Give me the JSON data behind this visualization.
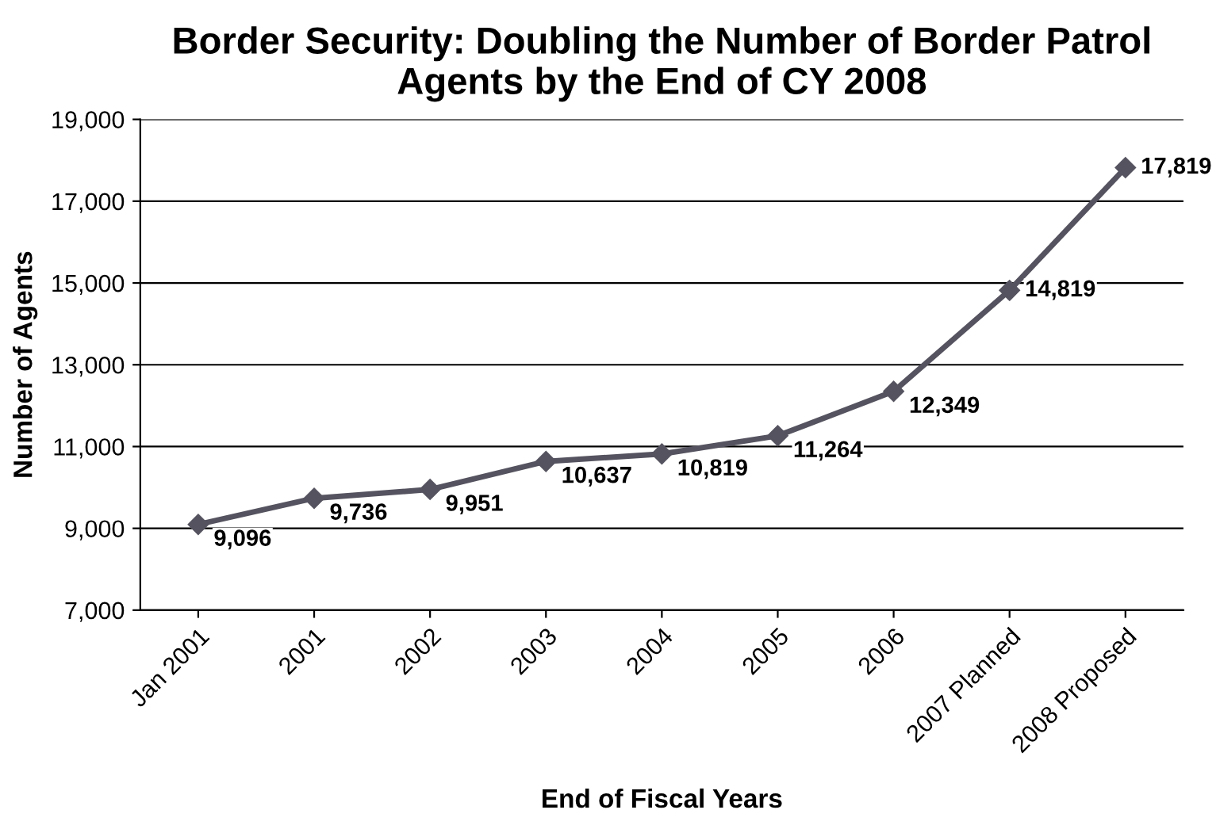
{
  "chart_data": {
    "type": "line",
    "title": "Border Security: Doubling the Number of Border Patrol Agents by the End of CY 2008",
    "xlabel": "End of Fiscal Years",
    "ylabel": "Number of Agents",
    "categories": [
      "Jan 2001",
      "2001",
      "2002",
      "2003",
      "2004",
      "2005",
      "2006",
      "2007 Planned",
      "2008 Proposed"
    ],
    "series": [
      {
        "color": "#55535f",
        "values": [
          9096,
          9736,
          9951,
          10637,
          10819,
          11264,
          12349,
          14819,
          17819
        ],
        "value_labels": [
          "9,096",
          "9,736",
          "9,951",
          "10,637",
          "10,819",
          "11,264",
          "12,349",
          "14,819",
          "17,819"
        ]
      }
    ],
    "ylim": [
      7000,
      19000
    ],
    "yticks": [
      {
        "value": 7000,
        "label": "7,000"
      },
      {
        "value": 9000,
        "label": "9,000"
      },
      {
        "value": 11000,
        "label": "11,000"
      },
      {
        "value": 13000,
        "label": "13,000"
      },
      {
        "value": 15000,
        "label": "15,000"
      },
      {
        "value": 17000,
        "label": "17,000"
      },
      {
        "value": 19000,
        "label": "19,000"
      }
    ],
    "grid": "y",
    "legend": false,
    "marker": "diamond",
    "line_style": "solid"
  }
}
